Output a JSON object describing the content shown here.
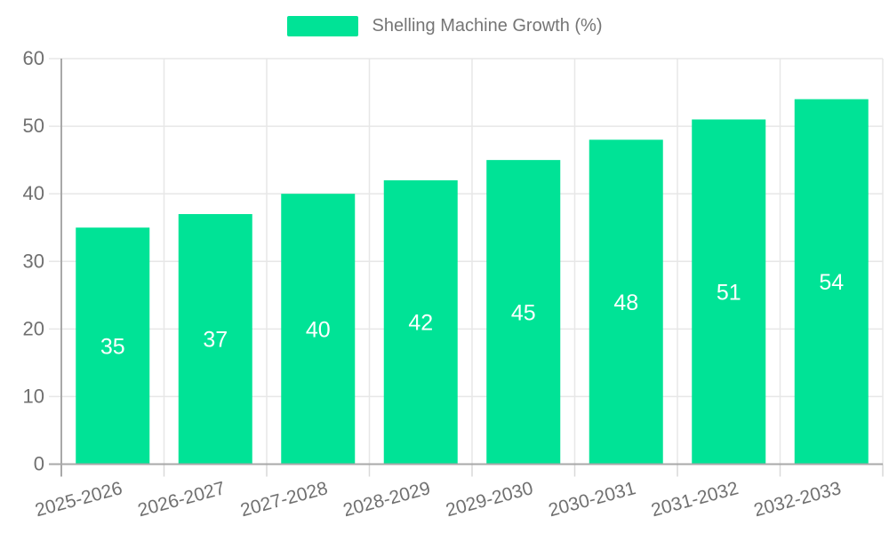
{
  "chart_data": {
    "type": "bar",
    "title": "",
    "legend": "Shelling Machine Growth (%)",
    "legend_position": "top",
    "categories": [
      "2025-2026",
      "2026-2027",
      "2027-2028",
      "2028-2029",
      "2029-2030",
      "2030-2031",
      "2031-2032",
      "2032-2033"
    ],
    "values": [
      35,
      37,
      40,
      42,
      45,
      48,
      51,
      54
    ],
    "xlabel": "",
    "ylabel": "",
    "ylim": [
      0,
      60
    ],
    "ytick_step": 10,
    "yticks": [
      0,
      10,
      20,
      30,
      40,
      50,
      60
    ],
    "grid": true,
    "bar_value_labels": "centered-white",
    "x_label_rotation_deg": -15,
    "colors": {
      "bar": "#00E396",
      "axis_text": "#707070",
      "legend_text": "#757575",
      "value_label": "#ffffff",
      "gridline": "#e7e7e7",
      "tick": "#d9d9d9",
      "axis_line": "#a8a8a8",
      "background": "#ffffff"
    }
  }
}
